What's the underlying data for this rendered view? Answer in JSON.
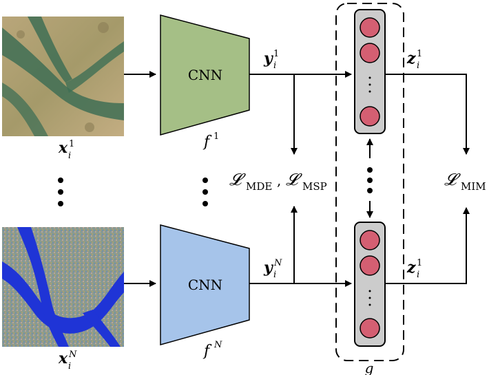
{
  "nodes": {
    "top_image": {
      "var": "x",
      "sub": "i",
      "sup": "1"
    },
    "bottom_image": {
      "var": "x",
      "sub": "i",
      "sup": "N"
    },
    "top_cnn": {
      "label": "CNN",
      "func": "f",
      "sup": "1",
      "color": "#a5bf86"
    },
    "bottom_cnn": {
      "label": "CNN",
      "func": "f",
      "sup": "N",
      "color": "#a6c4ea"
    },
    "top_feature": {
      "var": "y",
      "sub": "i",
      "sup": "1"
    },
    "bottom_feature": {
      "var": "y",
      "sub": "i",
      "sup": "N"
    },
    "top_proj": {
      "var": "z",
      "sub": "i",
      "sup": "1"
    },
    "bottom_proj": {
      "var": "z",
      "sub": "i",
      "sup": "1"
    },
    "projector": {
      "label": "g",
      "dots": "·",
      "node_color": "#d45f72",
      "box_color": "#cccccc"
    },
    "loss_mde_msp": {
      "L": "𝓛",
      "sub1": "MDE",
      "sep": ", ",
      "sub2": "MSP"
    },
    "loss_mim": {
      "L": "𝓛",
      "sub": "MIM"
    }
  }
}
